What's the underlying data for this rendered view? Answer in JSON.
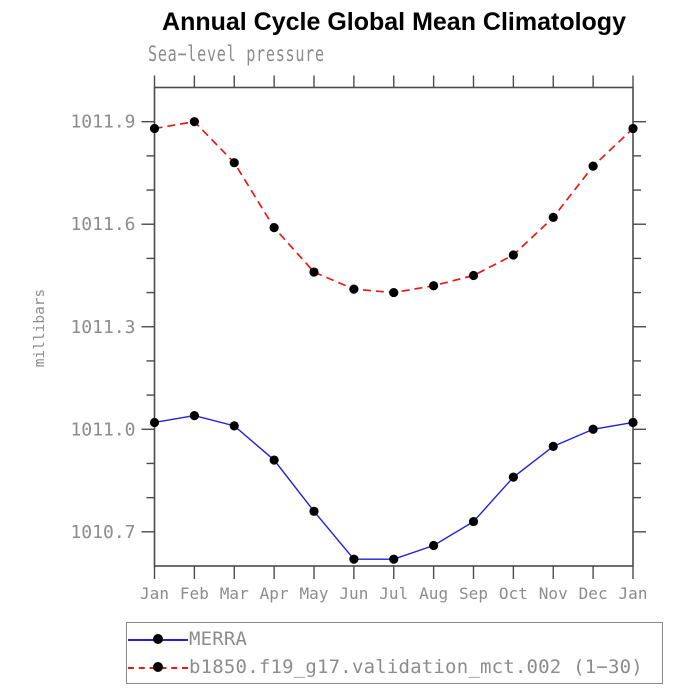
{
  "title": "Annual Cycle Global Mean Climatology",
  "subtitle": "Sea−level pressure",
  "colors": {
    "axis": "#4b4b4b",
    "label_text": "#8c8c8c",
    "title_text": "#000000",
    "merra_blue": "#2121d9",
    "model_red": "#e81a17",
    "marker_black": "#000000",
    "background": "#ffffff"
  },
  "chart_data": {
    "type": "line",
    "title": "Annual Cycle Global Mean Climatology",
    "subtitle": "Sea−level pressure",
    "xlabel": "",
    "ylabel": "millibars",
    "x_categories": [
      "Jan",
      "Feb",
      "Mar",
      "Apr",
      "May",
      "Jun",
      "Jul",
      "Aug",
      "Sep",
      "Oct",
      "Nov",
      "Dec",
      "Jan"
    ],
    "ylim": [
      1010.6,
      1012.0
    ],
    "y_major_ticks": [
      1010.7,
      1011.0,
      1011.3,
      1011.6,
      1011.9
    ],
    "y_tick_labels": [
      "1010.7",
      "1011.0",
      "1011.3",
      "1011.6",
      "1011.9"
    ],
    "y_minor_step": 0.1,
    "grid": false,
    "legend_position": "bottom",
    "series": [
      {
        "name": "MERRA",
        "color": "#2121d9",
        "line_style": "solid",
        "marker": "black-dot",
        "values": [
          1011.02,
          1011.04,
          1011.01,
          1010.91,
          1010.76,
          1010.62,
          1010.62,
          1010.66,
          1010.73,
          1010.86,
          1010.95,
          1011.0,
          1011.02
        ]
      },
      {
        "name": "b1850.f19_g17.validation_mct.002 (1−30)",
        "color": "#e81a17",
        "line_style": "dashed",
        "marker": "black-dot",
        "values": [
          1011.88,
          1011.9,
          1011.78,
          1011.59,
          1011.46,
          1011.41,
          1011.4,
          1011.42,
          1011.45,
          1011.51,
          1011.62,
          1011.77,
          1011.88
        ]
      }
    ]
  }
}
